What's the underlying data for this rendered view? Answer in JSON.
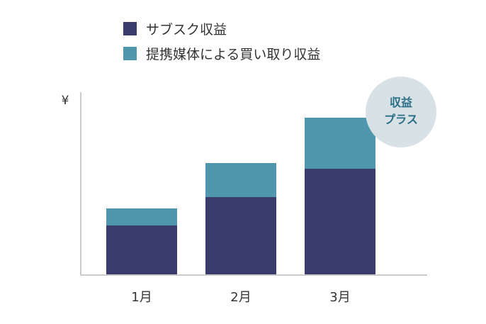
{
  "chart_data": {
    "type": "bar",
    "stacked": true,
    "categories": [
      "1月",
      "2月",
      "3月"
    ],
    "series": [
      {
        "name": "サブスク収益",
        "values": [
          70,
          110,
          150
        ],
        "color": "#393B6A"
      },
      {
        "name": "提携媒体による買い取り収益",
        "values": [
          24,
          48,
          72
        ],
        "color": "#5096AC"
      }
    ],
    "ylabel": "¥",
    "ylim": [
      0,
      260
    ],
    "grid": false,
    "legend": "top-left",
    "badge": {
      "lines": [
        "収益",
        "プラス"
      ],
      "bg": "#D8E2E6",
      "text_color": "#2B6E86"
    },
    "axis_color": "#CCCCCC"
  }
}
